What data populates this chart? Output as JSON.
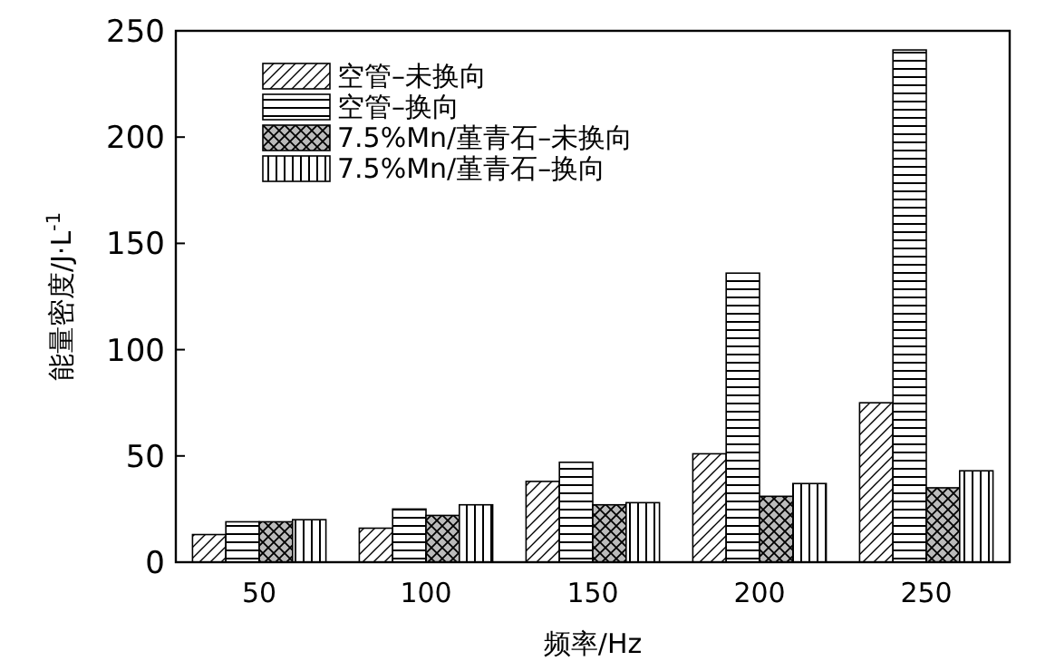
{
  "chart_data": {
    "type": "bar",
    "xlabel": "频率/Hz",
    "ylabel": "能量密度/J·L$^{-1}$",
    "categories": [
      "50",
      "100",
      "150",
      "200",
      "250"
    ],
    "ylim": [
      0,
      250
    ],
    "yticks": [
      0,
      50,
      100,
      150,
      200,
      250
    ],
    "grid": false,
    "legend": "top left",
    "series": [
      {
        "name": "空管–未换向",
        "color": "#000000",
        "values": [
          13,
          16,
          38,
          51,
          75
        ]
      },
      {
        "name": "空管–换向",
        "color": "#000000",
        "values": [
          19,
          25,
          47,
          136,
          241
        ]
      },
      {
        "name": "7.5%Mn/堇青石–未换向",
        "color": "#000000",
        "values": [
          19,
          22,
          27,
          31,
          35
        ]
      },
      {
        "name": "7.5%Mn/堇青石–换向",
        "color": "#000000",
        "values": [
          20,
          27,
          28,
          37,
          43
        ]
      }
    ]
  }
}
